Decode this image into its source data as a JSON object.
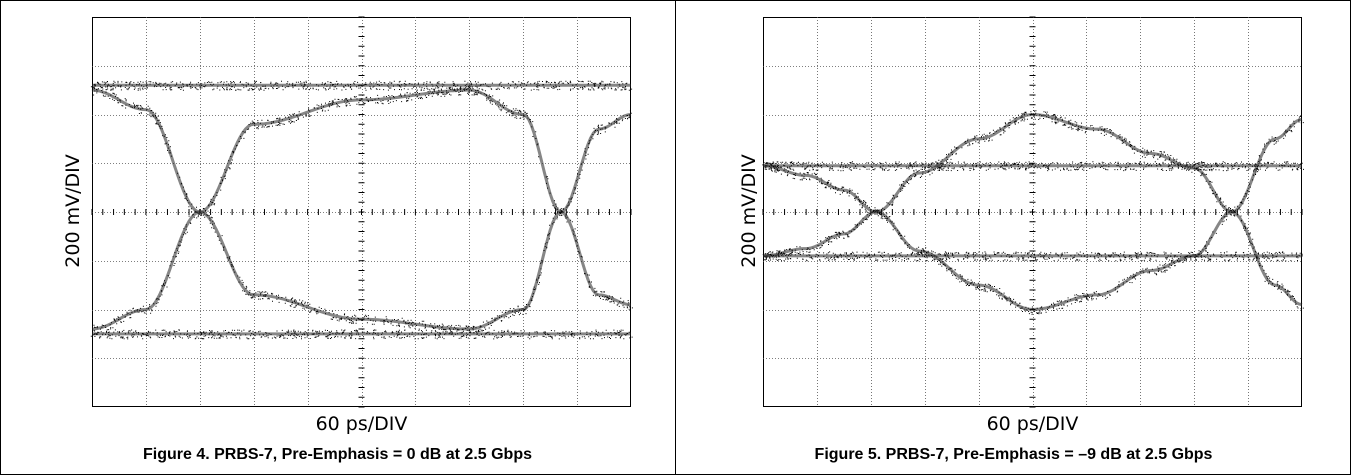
{
  "chart_data": [
    {
      "type": "line",
      "caption": "Figure 4. PRBS-7, Pre-Emphasis = 0 dB at 2.5 Gbps",
      "xlabel": "60 ps/DIV",
      "ylabel": "200 mV/DIV",
      "grid": true,
      "xdivs": 10,
      "ydivs": 8,
      "xlim": [
        0,
        10
      ],
      "ylim": [
        -4,
        4
      ],
      "levels": {
        "high": 2.6,
        "low": -2.5
      },
      "crossings_x": [
        2.0,
        8.7
      ],
      "series": [
        {
          "x": [
            0,
            1.0,
            2.0,
            3.0,
            5.0,
            7.0,
            8.0,
            8.7,
            9.4,
            10.0
          ],
          "y": [
            2.5,
            2.1,
            0.0,
            -1.7,
            -2.2,
            -2.4,
            -2.0,
            0.0,
            1.7,
            2.0
          ]
        },
        {
          "x": [
            0,
            1.0,
            2.0,
            3.0,
            5.0,
            7.0,
            8.0,
            8.7,
            9.4,
            10.0
          ],
          "y": [
            -2.4,
            -2.0,
            0.0,
            1.8,
            2.3,
            2.5,
            2.0,
            0.0,
            -1.7,
            -1.9
          ]
        },
        {
          "x": [
            0,
            10
          ],
          "y": [
            2.6,
            2.6
          ]
        },
        {
          "x": [
            0,
            10
          ],
          "y": [
            -2.5,
            -2.5
          ]
        }
      ]
    },
    {
      "type": "line",
      "caption": "Figure 5. PRBS-7, Pre-Emphasis = –9 dB at 2.5 Gbps",
      "xlabel": "60 ps/DIV",
      "ylabel": "200 mV/DIV",
      "grid": true,
      "xdivs": 10,
      "ydivs": 8,
      "xlim": [
        0,
        10
      ],
      "ylim": [
        -4,
        4
      ],
      "levels": {
        "high": 0.95,
        "low": -0.9
      },
      "crossings_x": [
        2.1,
        8.7
      ],
      "series": [
        {
          "x": [
            0,
            0.8,
            1.5,
            2.1,
            2.9,
            4.0,
            5.0,
            6.2,
            7.2,
            8.0,
            8.7,
            9.5,
            10.0
          ],
          "y": [
            0.95,
            0.75,
            0.45,
            0.0,
            -0.8,
            -1.5,
            -2.0,
            -1.7,
            -1.2,
            -0.9,
            0.0,
            1.5,
            1.9
          ]
        },
        {
          "x": [
            0,
            0.8,
            1.5,
            2.1,
            2.9,
            4.0,
            5.0,
            6.2,
            7.2,
            8.0,
            8.7,
            9.5,
            10.0
          ],
          "y": [
            -0.9,
            -0.75,
            -0.45,
            0.0,
            0.8,
            1.5,
            2.0,
            1.7,
            1.2,
            0.9,
            0.0,
            -1.5,
            -1.9
          ]
        },
        {
          "x": [
            0,
            10
          ],
          "y": [
            0.95,
            0.95
          ]
        },
        {
          "x": [
            0,
            10
          ],
          "y": [
            -0.9,
            -0.9
          ]
        }
      ]
    }
  ]
}
